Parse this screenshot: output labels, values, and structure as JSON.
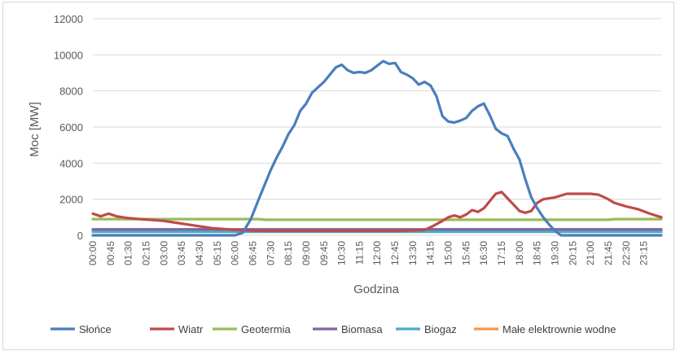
{
  "chart_data": {
    "type": "line",
    "title": "",
    "xlabel": "Godzina",
    "ylabel": "Moc [MW]",
    "ylim": [
      0,
      12000
    ],
    "yticks": [
      0,
      2000,
      4000,
      6000,
      8000,
      10000,
      12000
    ],
    "ytick_labels": [
      "0",
      "2000",
      "4000",
      "6000",
      "8000",
      "10000",
      "12000"
    ],
    "x_tick_labels": [
      "00:00",
      "00:45",
      "01:30",
      "02:15",
      "03:00",
      "03:45",
      "04:30",
      "05:15",
      "06:00",
      "06:45",
      "07:30",
      "08:15",
      "09:00",
      "09:45",
      "10:30",
      "11:15",
      "12:00",
      "12:45",
      "13:30",
      "14:15",
      "15:00",
      "15:45",
      "16:30",
      "17:15",
      "18:00",
      "18:45",
      "19:30",
      "20:15",
      "21:00",
      "21:45",
      "22:30",
      "23:15"
    ],
    "x_tick_every_minutes": 45,
    "x_unit": "time of day (hh:mm)",
    "grid": "horizontal",
    "legend_position": "bottom",
    "series": [
      {
        "name": "Słońce",
        "color": "#4a7ebb",
        "points": [
          [
            "00:00",
            0
          ],
          [
            "06:00",
            0
          ],
          [
            "06:20",
            150
          ],
          [
            "06:40",
            900
          ],
          [
            "07:00",
            2000
          ],
          [
            "07:15",
            2800
          ],
          [
            "07:30",
            3600
          ],
          [
            "07:45",
            4300
          ],
          [
            "08:00",
            4900
          ],
          [
            "08:15",
            5600
          ],
          [
            "08:30",
            6100
          ],
          [
            "08:45",
            6900
          ],
          [
            "09:00",
            7300
          ],
          [
            "09:15",
            7900
          ],
          [
            "09:30",
            8200
          ],
          [
            "09:45",
            8500
          ],
          [
            "10:00",
            8900
          ],
          [
            "10:15",
            9300
          ],
          [
            "10:30",
            9450
          ],
          [
            "10:45",
            9150
          ],
          [
            "11:00",
            9000
          ],
          [
            "11:15",
            9050
          ],
          [
            "11:30",
            9000
          ],
          [
            "11:45",
            9150
          ],
          [
            "12:00",
            9400
          ],
          [
            "12:15",
            9650
          ],
          [
            "12:30",
            9500
          ],
          [
            "12:45",
            9550
          ],
          [
            "13:00",
            9050
          ],
          [
            "13:15",
            8900
          ],
          [
            "13:30",
            8700
          ],
          [
            "13:45",
            8350
          ],
          [
            "14:00",
            8500
          ],
          [
            "14:15",
            8300
          ],
          [
            "14:30",
            7700
          ],
          [
            "14:45",
            6600
          ],
          [
            "15:00",
            6300
          ],
          [
            "15:15",
            6250
          ],
          [
            "15:30",
            6350
          ],
          [
            "15:45",
            6500
          ],
          [
            "16:00",
            6900
          ],
          [
            "16:15",
            7150
          ],
          [
            "16:30",
            7300
          ],
          [
            "16:45",
            6650
          ],
          [
            "17:00",
            5900
          ],
          [
            "17:15",
            5650
          ],
          [
            "17:30",
            5500
          ],
          [
            "17:45",
            4800
          ],
          [
            "18:00",
            4200
          ],
          [
            "18:15",
            3100
          ],
          [
            "18:30",
            2100
          ],
          [
            "18:45",
            1500
          ],
          [
            "19:00",
            1000
          ],
          [
            "19:15",
            600
          ],
          [
            "19:30",
            250
          ],
          [
            "19:45",
            0
          ],
          [
            "23:59",
            0
          ]
        ]
      },
      {
        "name": "Wiatr",
        "color": "#be4b48",
        "points": [
          [
            "00:00",
            1200
          ],
          [
            "00:20",
            1050
          ],
          [
            "00:40",
            1200
          ],
          [
            "01:00",
            1050
          ],
          [
            "01:30",
            950
          ],
          [
            "02:00",
            900
          ],
          [
            "02:30",
            850
          ],
          [
            "03:00",
            800
          ],
          [
            "03:30",
            700
          ],
          [
            "04:00",
            600
          ],
          [
            "04:30",
            500
          ],
          [
            "05:00",
            400
          ],
          [
            "05:30",
            350
          ],
          [
            "06:00",
            300
          ],
          [
            "07:00",
            250
          ],
          [
            "08:00",
            250
          ],
          [
            "09:00",
            250
          ],
          [
            "10:00",
            250
          ],
          [
            "11:00",
            250
          ],
          [
            "12:00",
            250
          ],
          [
            "13:00",
            250
          ],
          [
            "14:00",
            300
          ],
          [
            "14:20",
            500
          ],
          [
            "14:45",
            800
          ],
          [
            "15:00",
            1000
          ],
          [
            "15:15",
            1100
          ],
          [
            "15:30",
            1000
          ],
          [
            "15:45",
            1150
          ],
          [
            "16:00",
            1400
          ],
          [
            "16:15",
            1300
          ],
          [
            "16:30",
            1500
          ],
          [
            "16:45",
            1900
          ],
          [
            "17:00",
            2300
          ],
          [
            "17:15",
            2400
          ],
          [
            "17:30",
            2050
          ],
          [
            "17:45",
            1700
          ],
          [
            "18:00",
            1350
          ],
          [
            "18:15",
            1250
          ],
          [
            "18:30",
            1350
          ],
          [
            "18:45",
            1800
          ],
          [
            "19:00",
            2000
          ],
          [
            "19:15",
            2050
          ],
          [
            "19:30",
            2100
          ],
          [
            "20:00",
            2300
          ],
          [
            "20:30",
            2300
          ],
          [
            "21:00",
            2300
          ],
          [
            "21:20",
            2250
          ],
          [
            "21:45",
            2000
          ],
          [
            "22:00",
            1800
          ],
          [
            "22:30",
            1600
          ],
          [
            "23:00",
            1450
          ],
          [
            "23:30",
            1200
          ],
          [
            "23:59",
            1000
          ]
        ]
      },
      {
        "name": "Geotermia",
        "color": "#9bbb59",
        "points": [
          [
            "00:00",
            900
          ],
          [
            "07:00",
            900
          ],
          [
            "07:15",
            860
          ],
          [
            "21:45",
            860
          ],
          [
            "22:00",
            900
          ],
          [
            "23:59",
            900
          ]
        ]
      },
      {
        "name": "Biomasa",
        "color": "#7f63a2",
        "points": [
          [
            "00:00",
            330
          ],
          [
            "23:59",
            330
          ]
        ]
      },
      {
        "name": "Biogaz",
        "color": "#4bacc6",
        "points": [
          [
            "00:00",
            200
          ],
          [
            "23:59",
            200
          ]
        ]
      },
      {
        "name": "Małe elektrownie wodne",
        "color": "#f79646",
        "points": [
          [
            "00:00",
            250
          ],
          [
            "23:59",
            250
          ]
        ]
      }
    ]
  }
}
